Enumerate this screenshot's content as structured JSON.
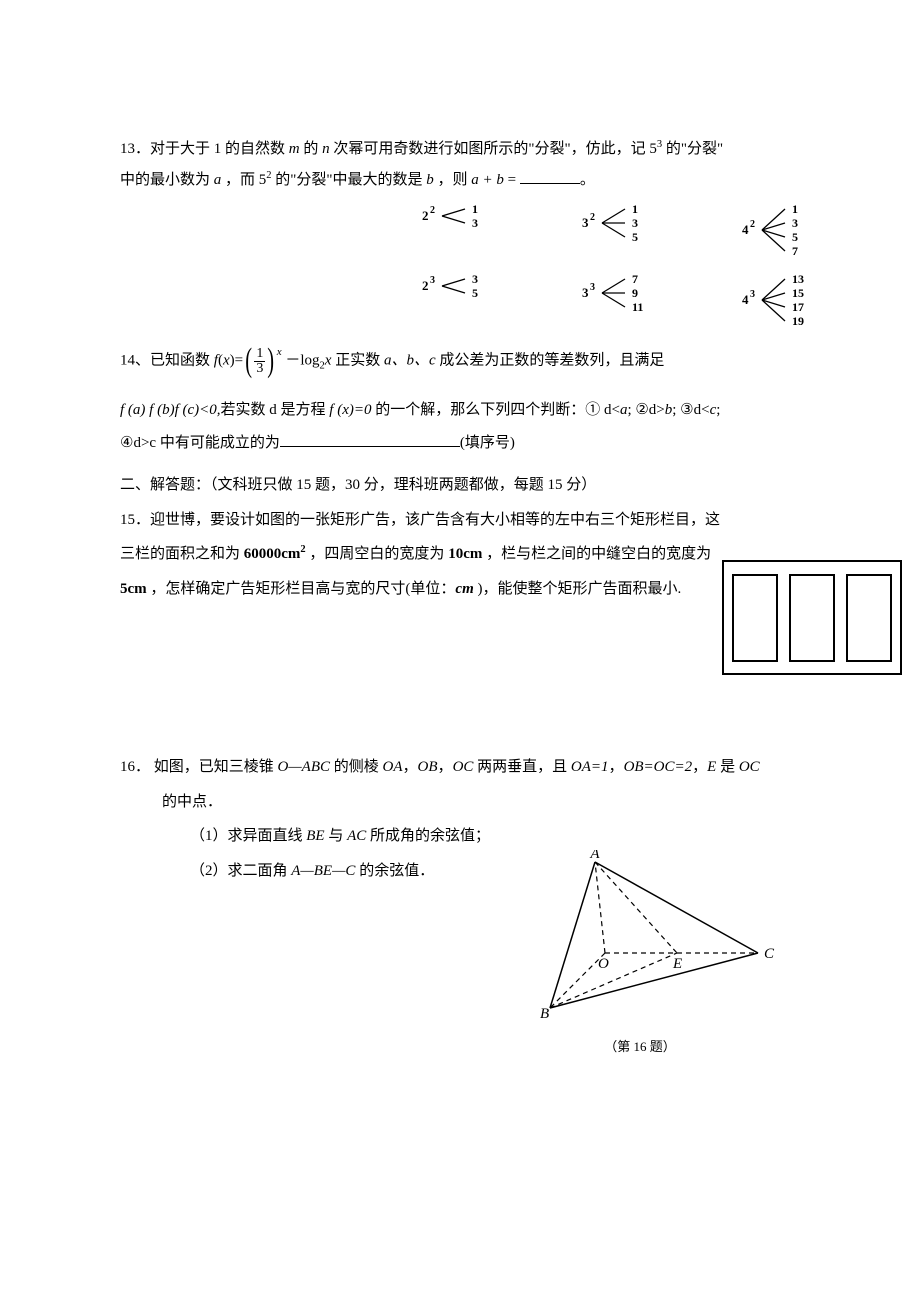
{
  "q13": {
    "prefix": "13．对于大于 1 的自然数 ",
    "m": "m",
    "mid1": " 的 ",
    "n": "n",
    "mid2": " 次幂可用奇数进行如图所示的\"分裂\"，仿此，记 5",
    "exp1": "3",
    "mid3": " 的\"分裂\"",
    "line2a": "中的最小数为 ",
    "a": "a",
    "mid4": " ，而 5",
    "exp2": "2",
    "mid5": " 的\"分裂\"中最大的数是 ",
    "b": "b",
    "mid6": " ，则 ",
    "ab": "a + b",
    "mid7": " = ",
    "tail": "。",
    "splits": {
      "row1": [
        {
          "base": "2",
          "exp": "2",
          "vals": [
            "1",
            "3"
          ]
        },
        {
          "base": "3",
          "exp": "2",
          "vals": [
            "1",
            "3",
            "5"
          ]
        },
        {
          "base": "4",
          "exp": "2",
          "vals": [
            "1",
            "3",
            "5",
            "7"
          ]
        }
      ],
      "row2": [
        {
          "base": "2",
          "exp": "3",
          "vals": [
            "3",
            "5"
          ]
        },
        {
          "base": "3",
          "exp": "3",
          "vals": [
            "7",
            "9",
            "11"
          ]
        },
        {
          "base": "4",
          "exp": "3",
          "vals": [
            "13",
            "15",
            "17",
            "19"
          ]
        }
      ]
    }
  },
  "q14": {
    "line1a": "14、已知函数 ",
    "fx": "f",
    "paren_open": "(",
    "x": "x",
    "paren_close": ")=",
    "frac_num": "1",
    "frac_den": "3",
    "after_frac": " －log",
    "log_base": "2",
    "log_arg": "x",
    "after_log": " 正实数 ",
    "abc": "a、b、c",
    "line1b": " 成公差为正数的等差数列，且满足",
    "line2a": "f ",
    "p2a": "(a) f (b)f (c)<0,",
    "line2mid": "若实数 d 是方程 ",
    "fx0": "f (x)=0",
    "line2b": " 的一个解，那么下列四个判断：① d<",
    "ia": "a",
    "semi1": ";   ②d>",
    "ib": "b",
    "semi2": ";   ③d<",
    "ic": "c",
    "semi3": ";",
    "line3a": "④d>c 中有可能成立的为",
    "line3b": "(填序号)"
  },
  "sec2": {
    "heading": "二、解答题：（文科班只做 15 题，30 分，理科班两题都做，每题 15 分）"
  },
  "q15": {
    "line1": "15．迎世博，要设计如图的一张矩形广告，该广告含有大小相等的左中右三个矩形栏目，这",
    "line2a": "三栏的面积之和为 ",
    "area": "60000cm",
    "area_exp": "2",
    "line2b": " ，四周空白的宽度为 ",
    "w1": "10cm",
    "line2c": " ，栏与栏之间的中缝空白的宽度为",
    "line3a": "5cm",
    "line3b": " ，怎样确定广告矩形栏目高与宽的尺寸(单位：",
    "unit": "cm",
    "line3c": " )，能使整个矩形广告面积最小."
  },
  "q16": {
    "line1a": "16．  如图，已知三棱锥 ",
    "oabc": "O—ABC",
    "line1b": " 的侧棱 ",
    "oa": "OA",
    "comma1": "，",
    "ob": "OB",
    "comma2": "，",
    "oc": "OC",
    "line1c": " 两两垂直，且 ",
    "eq1": "OA=1",
    "comma3": "，",
    "eq2": "OB=OC=2",
    "comma4": "，",
    "e": "E",
    "line1d": " 是 ",
    "oc2": "OC",
    "line2": "的中点．",
    "sub1": "（1）求异面直线 BE 与 AC 所成角的余弦值；",
    "sub2": "（2）求二面角 A—BE—C 的余弦值．",
    "caption": "（第 16 题）",
    "labels": {
      "A": "A",
      "B": "B",
      "C": "C",
      "O": "O",
      "E": "E"
    }
  }
}
